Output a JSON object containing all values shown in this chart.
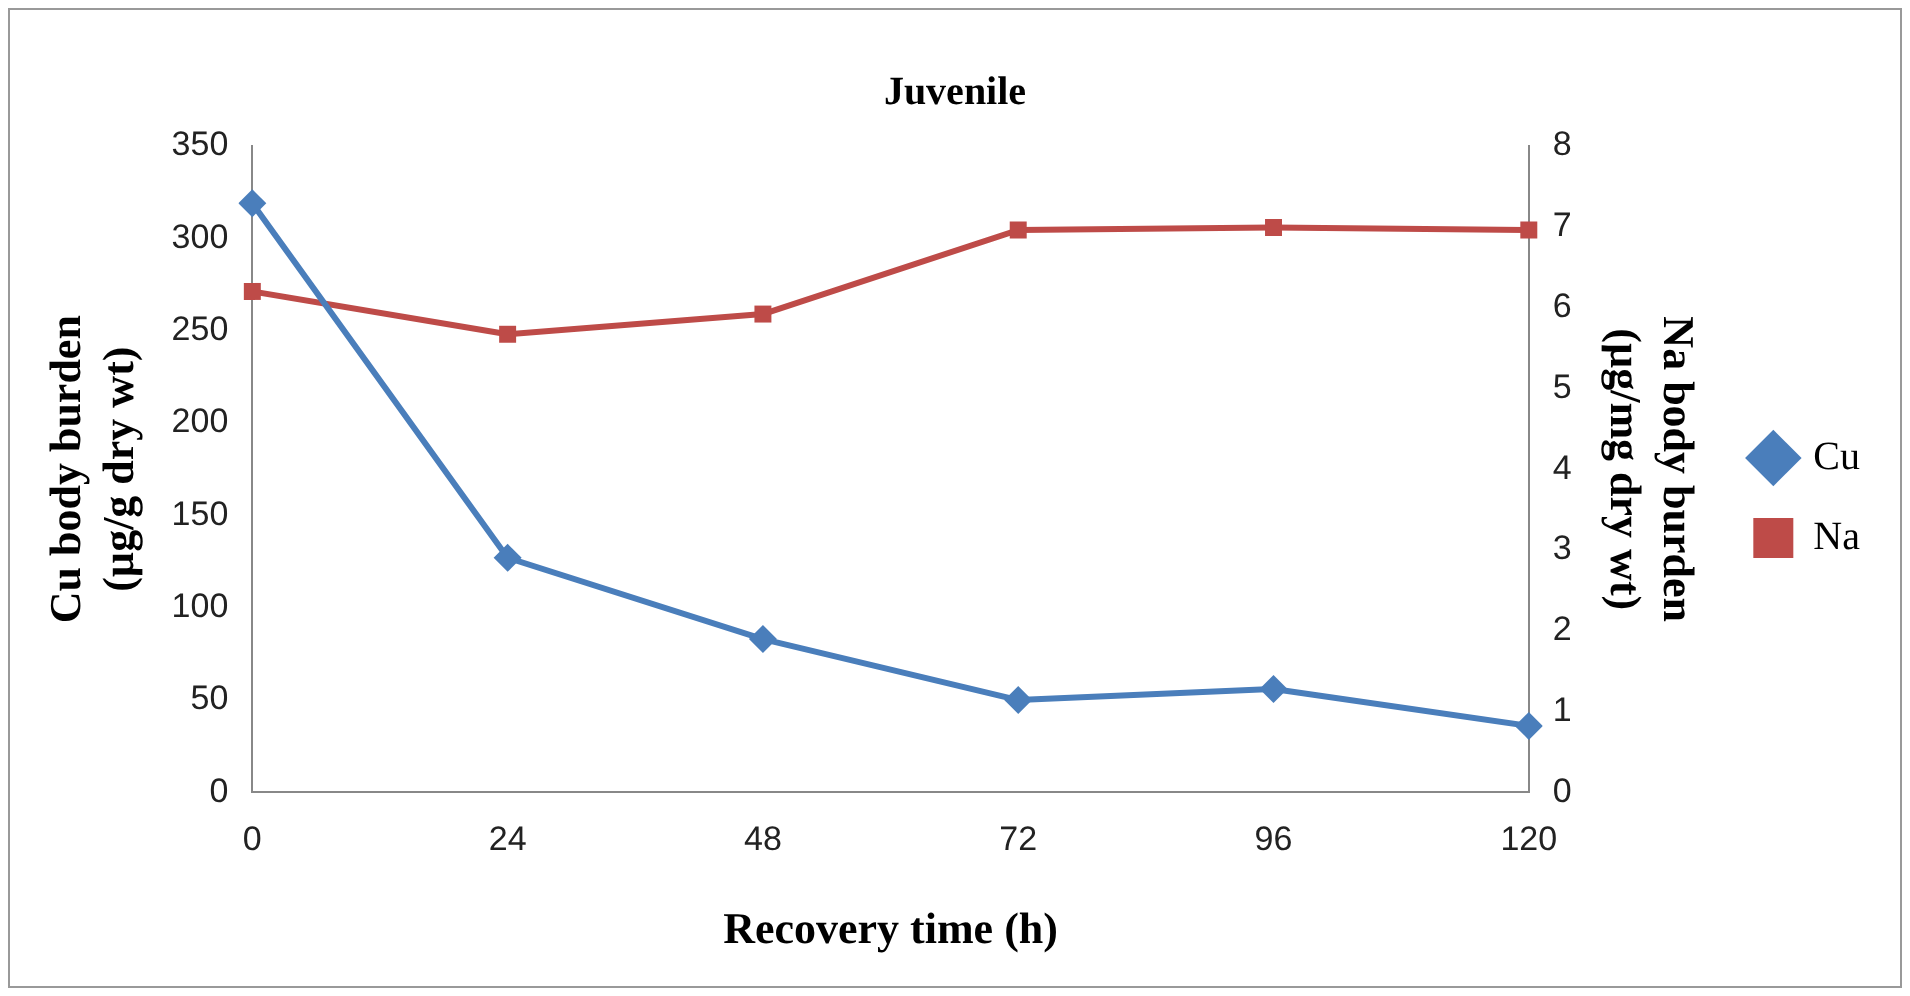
{
  "chart_data": {
    "type": "line",
    "title": "Juvenile",
    "xlabel": "Recovery time (h)",
    "ylabel": "Cu body burden (µg/g dry wt)",
    "y2label": "Na body burden (µg/mg dry wt)",
    "categories": [
      "0",
      "24",
      "48",
      "72",
      "96",
      "120"
    ],
    "series": [
      {
        "name": "Cu",
        "color": "#4a7ebb",
        "values": [
          319,
          127,
          83,
          50,
          56,
          36
        ],
        "marker": "diamond"
      },
      {
        "name": "Na",
        "color": "#be4b48",
        "values": [
          6.2,
          5.67,
          5.92,
          6.96,
          6.99,
          6.96
        ],
        "axis": "y2",
        "marker": "square"
      }
    ],
    "ylim": [
      0,
      350
    ],
    "yticks": [
      0,
      50,
      100,
      150,
      200,
      250,
      300,
      350
    ],
    "y2lim": [
      0,
      8
    ],
    "y2ticks": [
      0,
      1,
      2,
      3,
      4,
      5,
      6,
      7,
      8
    ],
    "grid": false,
    "legend": "right",
    "line_style": "solid"
  }
}
